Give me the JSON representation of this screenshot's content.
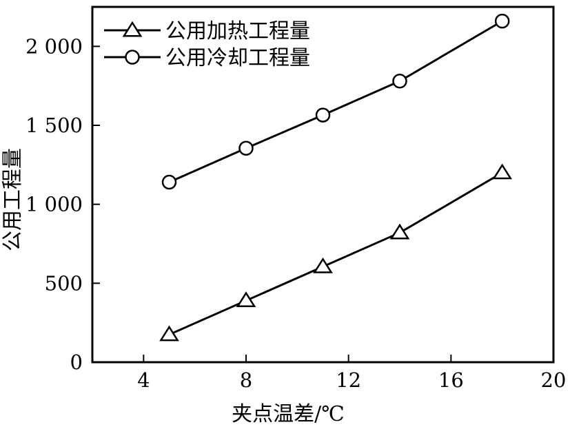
{
  "chart_data": {
    "type": "line",
    "title": "",
    "xlabel": "夹点温差/℃",
    "ylabel": "公用工程量",
    "x": [
      5,
      8,
      11,
      14,
      18
    ],
    "xlim": [
      2,
      20
    ],
    "ylim": [
      0,
      2250
    ],
    "xticks": [
      4,
      8,
      12,
      16,
      20
    ],
    "xtick_labels": [
      "4",
      "8",
      "12",
      "16",
      "20"
    ],
    "yticks": [
      0,
      500,
      1000,
      1500,
      2000
    ],
    "ytick_labels": [
      "0",
      "500",
      "1 000",
      "1 500",
      "2 000"
    ],
    "grid": false,
    "legend_position": "top-left",
    "series": [
      {
        "name": "公用加热工程量",
        "marker": "triangle",
        "values": [
          175,
          390,
          605,
          820,
          1200
        ]
      },
      {
        "name": "公用冷却工程量",
        "marker": "circle",
        "values": [
          1140,
          1355,
          1565,
          1780,
          2160
        ]
      }
    ]
  }
}
